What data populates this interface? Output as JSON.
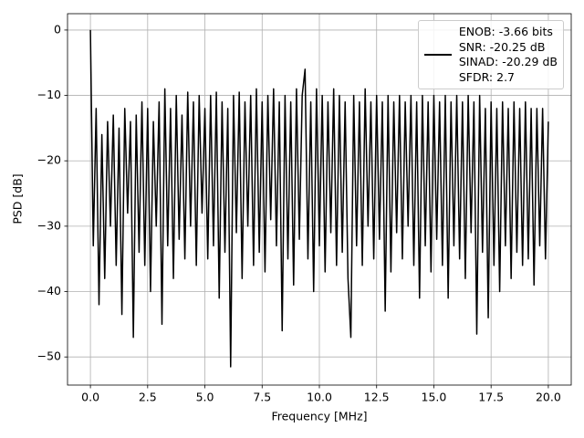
{
  "chart_data": {
    "type": "line",
    "xlabel": "Frequency [MHz]",
    "ylabel": "PSD [dB]",
    "x": [
      0,
      0.125,
      0.25,
      0.375,
      0.5,
      0.625,
      0.75,
      0.875,
      1,
      1.125,
      1.25,
      1.375,
      1.5,
      1.625,
      1.75,
      1.875,
      2,
      2.125,
      2.25,
      2.375,
      2.5,
      2.625,
      2.75,
      2.875,
      3,
      3.125,
      3.25,
      3.375,
      3.5,
      3.625,
      3.75,
      3.875,
      4,
      4.125,
      4.25,
      4.375,
      4.5,
      4.625,
      4.75,
      4.875,
      5,
      5.125,
      5.25,
      5.375,
      5.5,
      5.625,
      5.75,
      5.875,
      6,
      6.125,
      6.25,
      6.375,
      6.5,
      6.625,
      6.75,
      6.875,
      7,
      7.125,
      7.25,
      7.375,
      7.5,
      7.625,
      7.75,
      7.875,
      8,
      8.125,
      8.25,
      8.375,
      8.5,
      8.625,
      8.75,
      8.875,
      9,
      9.125,
      9.25,
      9.375,
      9.5,
      9.625,
      9.75,
      9.875,
      10,
      10.125,
      10.25,
      10.375,
      10.5,
      10.625,
      10.75,
      10.875,
      11,
      11.125,
      11.25,
      11.375,
      11.5,
      11.625,
      11.75,
      11.875,
      12,
      12.125,
      12.25,
      12.375,
      12.5,
      12.625,
      12.75,
      12.875,
      13,
      13.125,
      13.25,
      13.375,
      13.5,
      13.625,
      13.75,
      13.875,
      14,
      14.125,
      14.25,
      14.375,
      14.5,
      14.625,
      14.75,
      14.875,
      15,
      15.125,
      15.25,
      15.375,
      15.5,
      15.625,
      15.75,
      15.875,
      16,
      16.125,
      16.25,
      16.375,
      16.5,
      16.625,
      16.75,
      16.875,
      17,
      17.125,
      17.25,
      17.375,
      17.5,
      17.625,
      17.75,
      17.875,
      18,
      18.125,
      18.25,
      18.375,
      18.5,
      18.625,
      18.75,
      18.875,
      19,
      19.125,
      19.25,
      19.375,
      19.5,
      19.625,
      19.75,
      19.875,
      20
    ],
    "series": [
      {
        "name": "ENOB: -3.66 bits\nSNR: -20.25 dB\nSINAD: -20.29 dB\nSFDR: 2.7",
        "color": "#000000",
        "values": [
          0,
          -33,
          -12,
          -42,
          -16,
          -38,
          -14,
          -30,
          -13,
          -36,
          -15,
          -43.5,
          -12,
          -28,
          -14,
          -47,
          -13,
          -34,
          -11,
          -36,
          -12,
          -40,
          -14,
          -30,
          -11,
          -45,
          -9,
          -33,
          -12,
          -38,
          -10,
          -32,
          -13,
          -35,
          -9.5,
          -30,
          -11,
          -36,
          -10,
          -28,
          -12,
          -35,
          -10,
          -33,
          -9.5,
          -41,
          -11,
          -34,
          -12,
          -51.5,
          -10,
          -31,
          -9.5,
          -38,
          -11,
          -30,
          -10,
          -36,
          -9,
          -34,
          -11,
          -37,
          -10,
          -29,
          -9,
          -33,
          -11,
          -46,
          -10,
          -35,
          -11,
          -39,
          -9,
          -32,
          -10,
          -6,
          -35,
          -11,
          -40,
          -9,
          -33,
          -10,
          -37,
          -11,
          -31,
          -9,
          -36,
          -10,
          -34,
          -11,
          -38,
          -47,
          -10,
          -33,
          -11,
          -36,
          -9,
          -30,
          -11,
          -35,
          -10,
          -32,
          -11,
          -43,
          -10,
          -37,
          -11,
          -31,
          -10,
          -35,
          -11,
          -30,
          -10,
          -36,
          -11,
          -41,
          -10,
          -33,
          -11,
          -37,
          -10,
          -32,
          -11,
          -36,
          -10,
          -41,
          -11,
          -33,
          -10,
          -35,
          -11,
          -38,
          -10,
          -31,
          -11,
          -46.5,
          -10,
          -34,
          -12,
          -44,
          -11,
          -36,
          -12,
          -40,
          -11,
          -33,
          -12,
          -38,
          -11,
          -34,
          -12,
          -36,
          -11,
          -35,
          -12,
          -39,
          -12,
          -33,
          -12,
          -35,
          -14
        ]
      }
    ],
    "xlim": [
      -1,
      21
    ],
    "xticks": [
      {
        "value": 0,
        "label": "0.0"
      },
      {
        "value": 2.5,
        "label": "2.5"
      },
      {
        "value": 5,
        "label": "5.0"
      },
      {
        "value": 7.5,
        "label": "7.5"
      },
      {
        "value": 10,
        "label": "10.0"
      },
      {
        "value": 12.5,
        "label": "12.5"
      },
      {
        "value": 15,
        "label": "15.0"
      },
      {
        "value": 17.5,
        "label": "17.5"
      },
      {
        "value": 20,
        "label": "20.0"
      }
    ],
    "ylim": [
      -54.3,
      2.5
    ],
    "yticks": [
      {
        "value": 0,
        "label": "0"
      },
      {
        "value": -10,
        "label": "−10"
      },
      {
        "value": -20,
        "label": "−20"
      },
      {
        "value": -30,
        "label": "−30"
      },
      {
        "value": -40,
        "label": "−40"
      },
      {
        "value": -50,
        "label": "−50"
      }
    ],
    "grid": true,
    "legend": "upper right"
  }
}
